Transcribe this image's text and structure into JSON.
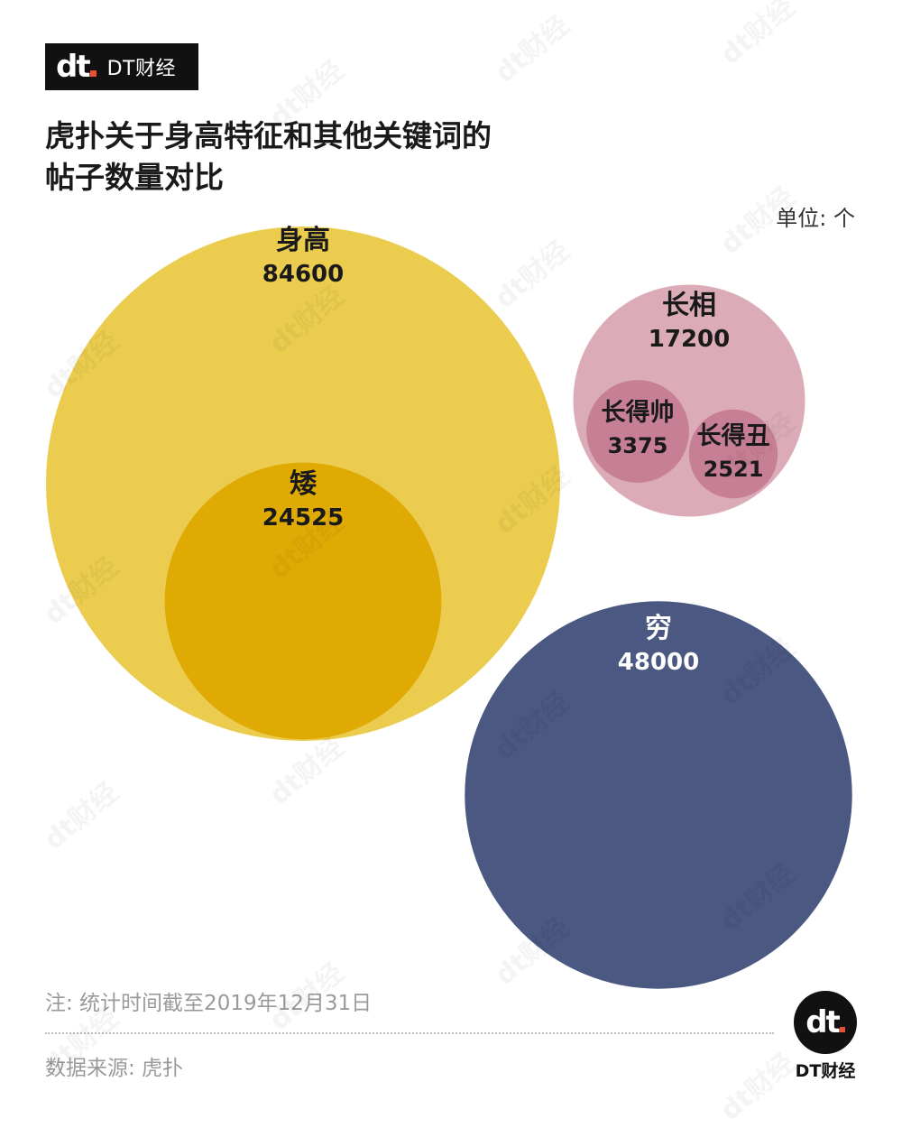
{
  "brand": {
    "mark": "dt",
    "name": "DT财经"
  },
  "title": "虎扑关于身高特征和其他关键词的帖子数量对比",
  "unit_label": "单位: 个",
  "note": "注: 统计时间截至2019年12月31日",
  "source": "数据来源: 虎扑",
  "watermark": "dt财经",
  "chart_data": {
    "type": "bubble",
    "title": "虎扑关于身高特征和其他关键词的帖子数量对比",
    "unit": "个",
    "series": [
      {
        "name": "身高",
        "value": 84600,
        "color": "#ebcc4f",
        "label_color": "#1a1a1a",
        "parent": null
      },
      {
        "name": "矮",
        "value": 24525,
        "color": "#e0aa05",
        "label_color": "#1a1a1a",
        "parent": "身高"
      },
      {
        "name": "长相",
        "value": 17200,
        "color": "#dcabb8",
        "label_color": "#1a1a1a",
        "parent": null
      },
      {
        "name": "长得帅",
        "value": 3375,
        "color": "#c77f95",
        "label_color": "#1a1a1a",
        "parent": "长相"
      },
      {
        "name": "长得丑",
        "value": 2521,
        "color": "#c77f95",
        "label_color": "#1a1a1a",
        "parent": "长相"
      },
      {
        "name": "穷",
        "value": 48000,
        "color": "#4a5882",
        "label_color": "#ffffff",
        "parent": null
      }
    ]
  }
}
